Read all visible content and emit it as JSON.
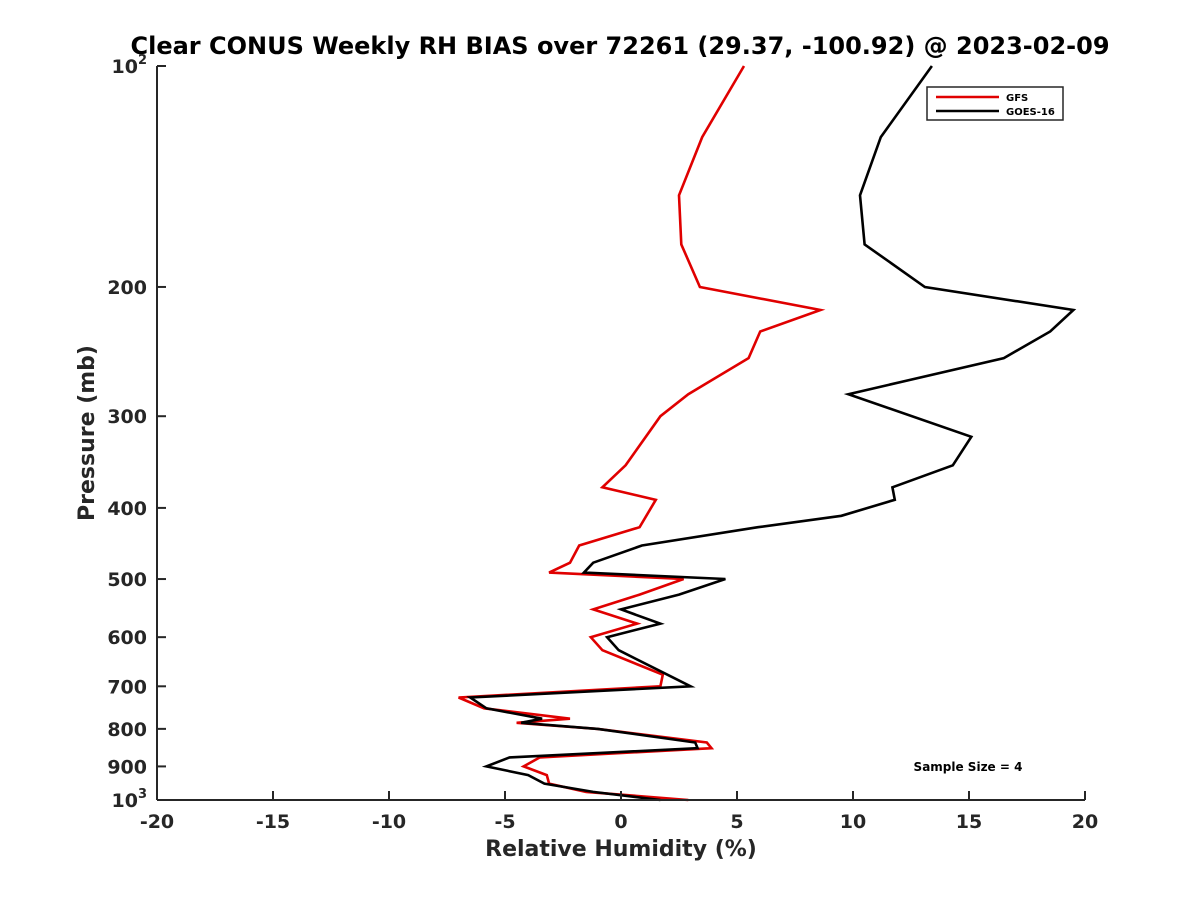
{
  "chart_data": {
    "type": "line",
    "title": "Clear CONUS Weekly RH BIAS over 72261 (29.37, -100.92) @ 2023-02-09",
    "xlabel": "Relative Humidity (%)",
    "ylabel": "Pressure (mb)",
    "xlim": [
      -20,
      20
    ],
    "ylim": [
      100,
      1000
    ],
    "y_scale": "log",
    "y_reversed": true,
    "grid": false,
    "legend_position": "top-right",
    "x_ticks": [
      "-20",
      "-15",
      "-10",
      "-5",
      "0",
      "5",
      "10",
      "15",
      "20"
    ],
    "y_ticks": [
      {
        "base": "10",
        "exp": "2"
      },
      {
        "base": "200",
        "exp": ""
      },
      {
        "base": "300",
        "exp": ""
      },
      {
        "base": "400",
        "exp": ""
      },
      {
        "base": "500",
        "exp": ""
      },
      {
        "base": "600",
        "exp": ""
      },
      {
        "base": "700",
        "exp": ""
      },
      {
        "base": "800",
        "exp": ""
      },
      {
        "base": "900",
        "exp": ""
      },
      {
        "base": "10",
        "exp": "3"
      }
    ],
    "annotation": "Sample Size = 4",
    "series": [
      {
        "name": "GFS",
        "color": "#e00000",
        "points": [
          [
            5.3,
            100
          ],
          [
            3.5,
            125
          ],
          [
            2.5,
            150
          ],
          [
            2.6,
            175
          ],
          [
            3.4,
            200
          ],
          [
            8.6,
            215
          ],
          [
            6.0,
            230
          ],
          [
            5.5,
            250
          ],
          [
            2.9,
            280
          ],
          [
            1.7,
            300
          ],
          [
            0.2,
            350
          ],
          [
            -0.8,
            375
          ],
          [
            1.5,
            390
          ],
          [
            0.8,
            425
          ],
          [
            -1.8,
            450
          ],
          [
            -2.2,
            475
          ],
          [
            -3.1,
            490
          ],
          [
            2.7,
            500
          ],
          [
            0.8,
            525
          ],
          [
            -1.2,
            550
          ],
          [
            0.7,
            575
          ],
          [
            -1.3,
            600
          ],
          [
            -0.8,
            625
          ],
          [
            1.8,
            675
          ],
          [
            1.7,
            700
          ],
          [
            -7.0,
            725
          ],
          [
            -5.9,
            750
          ],
          [
            -2.2,
            775
          ],
          [
            -4.5,
            785
          ],
          [
            -1.0,
            800
          ],
          [
            3.7,
            835
          ],
          [
            3.9,
            850
          ],
          [
            -3.5,
            875
          ],
          [
            -4.2,
            900
          ],
          [
            -3.2,
            925
          ],
          [
            -3.1,
            950
          ],
          [
            -1.5,
            975
          ],
          [
            2.9,
            1000
          ]
        ]
      },
      {
        "name": "GOES-16",
        "color": "#000000",
        "points": [
          [
            13.4,
            100
          ],
          [
            11.2,
            125
          ],
          [
            10.3,
            150
          ],
          [
            10.5,
            175
          ],
          [
            13.1,
            200
          ],
          [
            19.5,
            215
          ],
          [
            18.5,
            230
          ],
          [
            16.5,
            250
          ],
          [
            9.8,
            280
          ],
          [
            15.1,
            320
          ],
          [
            14.3,
            350
          ],
          [
            11.7,
            375
          ],
          [
            11.8,
            390
          ],
          [
            9.5,
            410
          ],
          [
            5.9,
            425
          ],
          [
            0.9,
            450
          ],
          [
            -1.2,
            475
          ],
          [
            -1.6,
            490
          ],
          [
            4.5,
            500
          ],
          [
            2.5,
            525
          ],
          [
            0.0,
            550
          ],
          [
            1.7,
            575
          ],
          [
            -0.6,
            600
          ],
          [
            -0.1,
            625
          ],
          [
            2.0,
            675
          ],
          [
            3.0,
            700
          ],
          [
            -6.5,
            725
          ],
          [
            -5.8,
            750
          ],
          [
            -3.4,
            775
          ],
          [
            -4.3,
            785
          ],
          [
            -1.0,
            800
          ],
          [
            3.2,
            835
          ],
          [
            3.3,
            850
          ],
          [
            -4.8,
            875
          ],
          [
            -5.8,
            900
          ],
          [
            -4.0,
            925
          ],
          [
            -3.3,
            950
          ],
          [
            -1.2,
            975
          ],
          [
            1.7,
            1000
          ]
        ]
      }
    ]
  }
}
